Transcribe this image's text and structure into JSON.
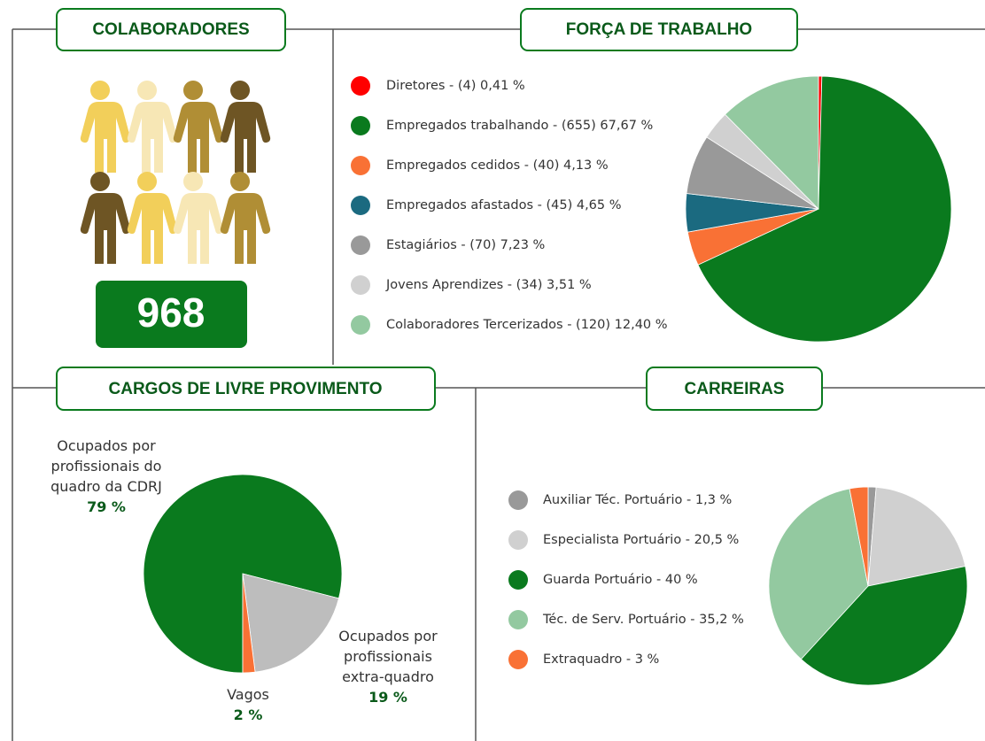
{
  "colaboradores": {
    "title": "COLABORADORES",
    "total": 968
  },
  "chart_data": [
    {
      "type": "pie",
      "title": "FORÇA DE TRABALHO",
      "categories": [
        "Diretores - (4) 0,41  %",
        "Empregados trabalhando - (655) 67,67 %",
        "Empregados cedidos - (40) 4,13 %",
        "Empregados afastados - (45) 4,65 %",
        "Estagiários - (70) 7,23 %",
        "Jovens Aprendizes - (34) 3,51 %",
        "Colaboradores Tercerizados - (120) 12,40 %"
      ],
      "values": [
        0.41,
        67.67,
        4.13,
        4.65,
        7.23,
        3.51,
        12.4
      ],
      "colors": [
        "#ff0000",
        "#0a7a1e",
        "#f97135",
        "#1b6a80",
        "#999999",
        "#d0d0d0",
        "#93c9a0"
      ]
    },
    {
      "type": "pie",
      "title": "CARGOS DE LIVRE PROVIMENTO",
      "categories": [
        "Ocupados por profissionais do quadro da CDRJ",
        "Ocupados por profissionais extra-quadro",
        "Vagos"
      ],
      "values": [
        79,
        19,
        2
      ],
      "value_labels": [
        "79 %",
        "19 %",
        "2 %"
      ],
      "colors": [
        "#0a7a1e",
        "#bdbdbd",
        "#f97135"
      ]
    },
    {
      "type": "pie",
      "title": "CARREIRAS",
      "categories": [
        "Auxiliar Téc. Portuário - 1,3 %",
        "Especialista Portuário - 20,5 %",
        "Guarda Portuário - 40 %",
        "Téc. de Serv. Portuário - 35,2 %",
        "Extraquadro - 3 %"
      ],
      "values": [
        1.3,
        20.5,
        40,
        35.2,
        3
      ],
      "colors": [
        "#999999",
        "#d0d0d0",
        "#0a7a1e",
        "#93c9a0",
        "#f97135"
      ]
    }
  ]
}
